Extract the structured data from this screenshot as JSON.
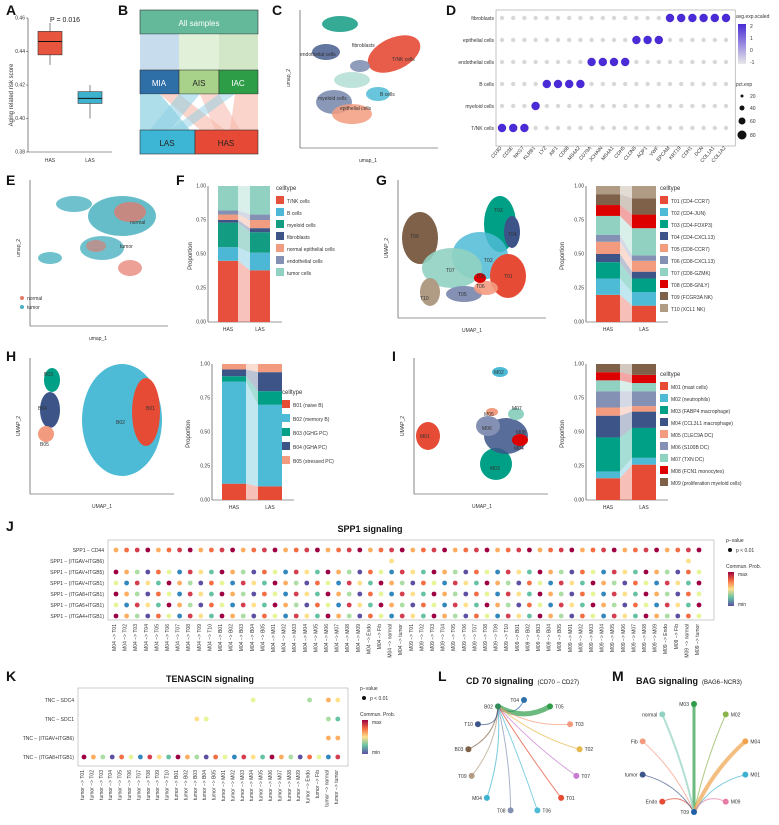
{
  "panels": {
    "A": "A",
    "B": "B",
    "C": "C",
    "D": "D",
    "E": "E",
    "F": "F",
    "G": "G",
    "H": "H",
    "I": "I",
    "J": "J",
    "K": "K",
    "L": "L",
    "M": "M"
  },
  "panelA": {
    "ylabel": "Aging related risk score",
    "pvalue": "P = 0.016",
    "yticks": [
      "0.38",
      "0.40",
      "0.42",
      "0.44",
      "0.46"
    ],
    "categories": [
      "HAS",
      "LAS"
    ]
  },
  "panelB": {
    "top": "All samples",
    "mid": [
      "MIA",
      "AIS",
      "IAC"
    ],
    "bottom": [
      "LAS",
      "HAS"
    ]
  },
  "panelC": {
    "xlabel": "umap_1",
    "ylabel": "umap_2",
    "labels": [
      "fibroblasts",
      "endothelial cells",
      "T/NK cells",
      "B cells",
      "myeloid cells",
      "epithelial cells"
    ]
  },
  "panelD": {
    "rows": [
      "fibroblasts",
      "epithelial cells",
      "endothelial cells",
      "B cells",
      "myeloid cells",
      "T/NK cells"
    ],
    "genes": [
      "CD3D",
      "CD3E",
      "NKG7",
      "KLRB1",
      "LYZ",
      "AIF1",
      "CD68",
      "MS4A2",
      "CD79A",
      "JCHAIN",
      "MS4A1",
      "CDH5",
      "CLDN5",
      "AQP1",
      "VWF",
      "EPCAM",
      "KRT19",
      "CDH1",
      "DCN",
      "COL1A1",
      "COL1A2"
    ],
    "legend_title1": "avg.exp.scaled",
    "legend_ticks1": [
      "2",
      "1",
      "0",
      "-1"
    ],
    "legend_title2": "pct.exp",
    "legend_sizes": [
      "20",
      "40",
      "60",
      "80"
    ]
  },
  "panelE": {
    "xlabel": "umap_1",
    "ylabel": "umap_2",
    "legend": [
      "normal",
      "tumor"
    ],
    "labels": [
      "normal",
      "tumor"
    ]
  },
  "panelF": {
    "ylabel": "Proportion",
    "yticks": [
      "0.00",
      "0.25",
      "0.50",
      "0.75",
      "1.00"
    ],
    "categories": [
      "HAS",
      "LAS"
    ],
    "legend_title": "celltype",
    "legend": [
      "T/NK cells",
      "B cells",
      "myeloid cells",
      "fibroblasts",
      "normal epithelial cells",
      "endothelial cells",
      "tumor cells"
    ]
  },
  "panelG": {
    "xlabel": "UMAP_1",
    "ylabel": "UMAP_2",
    "labels": [
      "T09",
      "T03",
      "T04",
      "T02",
      "T07",
      "T08",
      "T01",
      "T06",
      "T05",
      "T10"
    ],
    "ylabel2": "Proportion",
    "categories": [
      "HAS",
      "LAS"
    ],
    "legend_title": "celltype",
    "legend": [
      "T01 (CD4-CCR7)",
      "T02 (CD4-JUN)",
      "T03 (CD4-FOXP3)",
      "T04 (CD4-CXCL13)",
      "T05 (CD8-CCR7)",
      "T06 (CD8-CXCL13)",
      "T07 (CD8-GZMK)",
      "T08 (CD8-GNLY)",
      "T09 (FCGR3A NK)",
      "T10 (XCL1 NK)"
    ]
  },
  "panelH": {
    "xlabel": "UMAP_1",
    "ylabel": "UMAP_2",
    "labels": [
      "B05",
      "B04",
      "B03",
      "B02",
      "B01"
    ],
    "ylabel2": "Proportion",
    "categories": [
      "HAS",
      "LAS"
    ],
    "legend_title": "celltype",
    "legend": [
      "B01 (naive B)",
      "B02 (memory B)",
      "B03 (IGHG PC)",
      "B04 (IGHA PC)",
      "B05 (stressed PC)"
    ]
  },
  "panelI": {
    "xlabel": "UMAP_1",
    "ylabel": "UMAP_2",
    "labels": [
      "M02",
      "M07",
      "M05",
      "M01",
      "M06",
      "M08",
      "M04",
      "M03"
    ],
    "ylabel2": "Proportion",
    "categories": [
      "HAS",
      "LAS"
    ],
    "legend_title": "celltype",
    "legend": [
      "M01 (mast cells)",
      "M02 (neutrophils)",
      "M03 (FABP4 macrophage)",
      "M04 (CCL3L1 macrophage)",
      "M05 (CLEC9A DC)",
      "M06 (S100B DC)",
      "M07 (TXN DC)",
      "M08 (FCN1 monocytes)",
      "M09 (proliferation myeloid cells)"
    ]
  },
  "panelJ": {
    "title": "SPP1 signaling",
    "rows": [
      "SPP1 − CD44",
      "SPP1 − (ITGAV+ITGB6)",
      "SPP1 − (ITGAV+ITGB5)",
      "SPP1 − (ITGAV+ITGB1)",
      "SPP1 − (ITGA8+ITGB1)",
      "SPP1 − (ITGA5+ITGB1)",
      "SPP1 − (ITGA4+ITGB1)"
    ],
    "cols": [
      "M04 −> T01",
      "M04 −> T02",
      "M04 −> T03",
      "M04 −> T04",
      "M04 −> T05",
      "M04 −> T06",
      "M04 −> T07",
      "M04 −> T08",
      "M04 −> T09",
      "M04 −> T10",
      "M04 −> B01",
      "M04 −> B02",
      "M04 −> B03",
      "M04 −> B04",
      "M04 −> B05",
      "M04 −> M01",
      "M04 −> M02",
      "M04 −> M03",
      "M04 −> M04",
      "M04 −> M05",
      "M04 −> M06",
      "M04 −> M07",
      "M04 −> M08",
      "M04 −> M09",
      "M04 −> Endo",
      "M04 −> Fib",
      "M04 −> normal",
      "M04 −> tumor",
      "M09 −> T01",
      "M09 −> T02",
      "M09 −> T03",
      "M09 −> T04",
      "M09 −> T05",
      "M09 −> T06",
      "M09 −> T07",
      "M09 −> T08",
      "M09 −> T09",
      "M09 −> T10",
      "M09 −> B01",
      "M09 −> B02",
      "M09 −> B03",
      "M09 −> B04",
      "M09 −> B05",
      "M09 −> M01",
      "M09 −> M02",
      "M09 −> M03",
      "M09 −> M04",
      "M09 −> M05",
      "M09 −> M06",
      "M09 −> M07",
      "M09 −> M08",
      "M09 −> M09",
      "M09 −> Endo",
      "M09 −> Fib",
      "M09 −> normal",
      "M09 −> tumor"
    ],
    "pvalue_title": "p−value",
    "pvalue_item": "p < 0.01",
    "prob_title": "Commun. Prob.",
    "prob_max": "max",
    "prob_min": "min"
  },
  "panelK": {
    "title": "TENASCIN signaling",
    "rows": [
      "TNC − SDC4",
      "TNC − SDC1",
      "TNC − (ITGAV+ITGB6)",
      "TNC − (ITGA8+ITGB1)"
    ],
    "cols": [
      "tumor −> T01",
      "tumor −> T02",
      "tumor −> T03",
      "tumor −> T04",
      "tumor −> T05",
      "tumor −> T06",
      "tumor −> T07",
      "tumor −> T08",
      "tumor −> T09",
      "tumor −> T10",
      "tumor −> B01",
      "tumor −> B02",
      "tumor −> B03",
      "tumor −> B04",
      "tumor −> B05",
      "tumor −> M01",
      "tumor −> M02",
      "tumor −> M03",
      "tumor −> M04",
      "tumor −> M05",
      "tumor −> M06",
      "tumor −> M07",
      "tumor −> M08",
      "tumor −> M09",
      "tumor −> Endo",
      "tumor −> Fib",
      "tumor −> normal",
      "tumor −> tumor"
    ],
    "pvalue_title": "p−value",
    "pvalue_item": "p < 0.01",
    "prob_title": "Commun. Prob.",
    "prob_max": "max",
    "prob_min": "min"
  },
  "panelL": {
    "title": "CD 70 signaling",
    "subtitle": "(CD70 − CD27)",
    "nodes": [
      "T04",
      "T05",
      "T03",
      "T02",
      "T07",
      "T01",
      "T06",
      "T08",
      "M04",
      "T09",
      "B03",
      "T10",
      "B02"
    ]
  },
  "panelM": {
    "title": "BAG signaling",
    "subtitle": "(BAG6−NCR3)",
    "nodes": [
      "M03",
      "M02",
      "M04",
      "M01",
      "M09",
      "T09",
      "Endo",
      "tumor",
      "Fib",
      "normal"
    ]
  },
  "chart_data": [
    {
      "type": "box",
      "title": "",
      "ylabel": "Aging related risk score",
      "categories": [
        "HAS",
        "LAS"
      ],
      "boxes": [
        {
          "name": "HAS",
          "min": 0.432,
          "q1": 0.438,
          "median": 0.446,
          "q3": 0.452,
          "max": 0.457,
          "color": "#e8553e"
        },
        {
          "name": "LAS",
          "min": 0.4,
          "q1": 0.409,
          "median": 0.412,
          "q3": 0.416,
          "max": 0.42,
          "color": "#3cb2cf"
        }
      ],
      "ylim": [
        0.38,
        0.46
      ],
      "annotation": "P = 0.016"
    },
    {
      "type": "bar",
      "stacked": true,
      "ylabel": "Proportion",
      "categories": [
        "HAS",
        "LAS"
      ],
      "series": [
        {
          "name": "T/NK cells",
          "values": [
            0.45,
            0.38
          ],
          "color": "#e7503c"
        },
        {
          "name": "B cells",
          "values": [
            0.1,
            0.13
          ],
          "color": "#4db7d6"
        },
        {
          "name": "myeloid cells",
          "values": [
            0.18,
            0.15
          ],
          "color": "#129c82"
        },
        {
          "name": "fibroblasts",
          "values": [
            0.02,
            0.03
          ],
          "color": "#3e5487"
        },
        {
          "name": "normal epithelial cells",
          "values": [
            0.04,
            0.06
          ],
          "color": "#f29c82"
        },
        {
          "name": "endothelial cells",
          "values": [
            0.03,
            0.04
          ],
          "color": "#8491b4"
        },
        {
          "name": "tumor cells",
          "values": [
            0.18,
            0.21
          ],
          "color": "#91d1c2"
        }
      ]
    },
    {
      "type": "bar",
      "stacked": true,
      "ylabel": "Proportion",
      "categories": [
        "HAS",
        "LAS"
      ],
      "series": [
        {
          "name": "T01 (CD4-CCR7)",
          "values": [
            0.2,
            0.12
          ],
          "color": "#e64b35"
        },
        {
          "name": "T02 (CD4-JUN)",
          "values": [
            0.12,
            0.1
          ],
          "color": "#4dbbd5"
        },
        {
          "name": "T03 (CD4-FOXP3)",
          "values": [
            0.12,
            0.1
          ],
          "color": "#00a087"
        },
        {
          "name": "T04 (CD4-CXCL13)",
          "values": [
            0.06,
            0.05
          ],
          "color": "#3c5488"
        },
        {
          "name": "T05 (CD8-CCR7)",
          "values": [
            0.09,
            0.08
          ],
          "color": "#f39b7f"
        },
        {
          "name": "T06 (CD8-CXCL13)",
          "values": [
            0.05,
            0.04
          ],
          "color": "#8491b4"
        },
        {
          "name": "T07 (CD8-GZMK)",
          "values": [
            0.14,
            0.2
          ],
          "color": "#91d1c2"
        },
        {
          "name": "T08 (CD8-GNLY)",
          "values": [
            0.08,
            0.1
          ],
          "color": "#dc0000"
        },
        {
          "name": "T09 (FCGR3A NK)",
          "values": [
            0.08,
            0.12
          ],
          "color": "#7e6148"
        },
        {
          "name": "T10 (XCL1 NK)",
          "values": [
            0.06,
            0.09
          ],
          "color": "#b09c85"
        }
      ]
    },
    {
      "type": "bar",
      "stacked": true,
      "ylabel": "Proportion",
      "categories": [
        "HAS",
        "LAS"
      ],
      "series": [
        {
          "name": "B01 (naive B)",
          "values": [
            0.12,
            0.1
          ],
          "color": "#e64b35"
        },
        {
          "name": "B02 (memory B)",
          "values": [
            0.75,
            0.6
          ],
          "color": "#4dbbd5"
        },
        {
          "name": "B03 (IGHG PC)",
          "values": [
            0.04,
            0.1
          ],
          "color": "#00a087"
        },
        {
          "name": "B04 (IGHA PC)",
          "values": [
            0.05,
            0.14
          ],
          "color": "#3c5488"
        },
        {
          "name": "B05 (stressed PC)",
          "values": [
            0.04,
            0.06
          ],
          "color": "#f39b7f"
        }
      ]
    },
    {
      "type": "bar",
      "stacked": true,
      "ylabel": "Proportion",
      "categories": [
        "HAS",
        "LAS"
      ],
      "series": [
        {
          "name": "M01 (mast cells)",
          "values": [
            0.16,
            0.26
          ],
          "color": "#e64b35"
        },
        {
          "name": "M02 (neutrophils)",
          "values": [
            0.05,
            0.05
          ],
          "color": "#4dbbd5"
        },
        {
          "name": "M03 (FABP4 macrophage)",
          "values": [
            0.25,
            0.22
          ],
          "color": "#00a087"
        },
        {
          "name": "M04 (CCL3L1 macrophage)",
          "values": [
            0.16,
            0.12
          ],
          "color": "#3c5488"
        },
        {
          "name": "M05 (CLEC9A DC)",
          "values": [
            0.06,
            0.04
          ],
          "color": "#f39b7f"
        },
        {
          "name": "M06 (S100B DC)",
          "values": [
            0.12,
            0.11
          ],
          "color": "#8491b4"
        },
        {
          "name": "M07 (TXN DC)",
          "values": [
            0.08,
            0.06
          ],
          "color": "#91d1c2"
        },
        {
          "name": "M08 (FCN1 monocytes)",
          "values": [
            0.06,
            0.06
          ],
          "color": "#dc0000"
        },
        {
          "name": "M09 (proliferation myeloid cells)",
          "values": [
            0.06,
            0.08
          ],
          "color": "#7e6148"
        }
      ]
    }
  ]
}
